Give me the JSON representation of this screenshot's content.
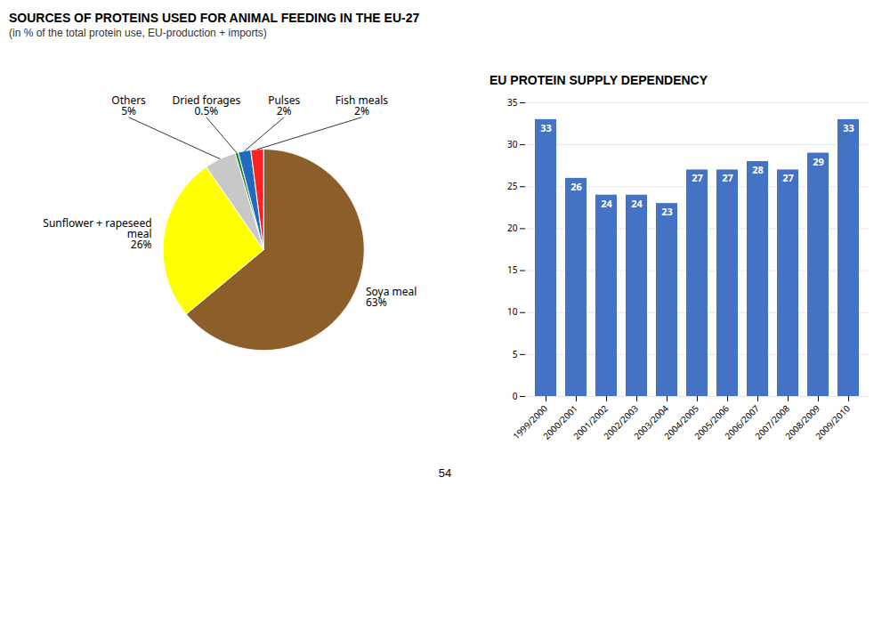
{
  "chart_data": [
    {
      "type": "pie",
      "title": "SOURCES OF PROTEINS USED FOR ANIMAL FEEDING IN THE EU-27",
      "subtitle": "(in % of the total protein use, EU-production + imports)",
      "categories": [
        "Soya meal",
        "Sunflower + rapeseed\nmeal",
        "Others",
        "Dried forages",
        "Pulses",
        "Fish meals"
      ],
      "values": [
        63,
        26,
        5,
        0.5,
        2,
        2
      ],
      "value_labels": [
        "63%",
        "26%",
        "5%",
        "0.5%",
        "2%",
        "2%"
      ],
      "colors": [
        "#8B5E2A",
        "#FFFF00",
        "#C8C8C8",
        "#228B22",
        "#1E6BBF",
        "#FF2020"
      ],
      "data_labels": true,
      "annotations": [
        "54"
      ]
    },
    {
      "type": "bar",
      "title": "EU PROTEIN SUPPLY DEPENDENCY",
      "categories": [
        "1999/2000",
        "2000/2001",
        "2001/2002",
        "2002/2003",
        "2003/2004",
        "2004/2005",
        "2005/2006",
        "2006/2007",
        "2007/2008",
        "2008/2009",
        "2009/2010"
      ],
      "values": [
        33,
        26,
        24,
        24,
        23,
        27,
        27,
        28,
        27,
        29,
        33
      ],
      "color": "#4472C4",
      "ylim": [
        0,
        35
      ],
      "yticks": [
        0,
        5,
        10,
        15,
        20,
        25,
        30,
        35
      ],
      "grid": true,
      "data_labels": true
    }
  ]
}
